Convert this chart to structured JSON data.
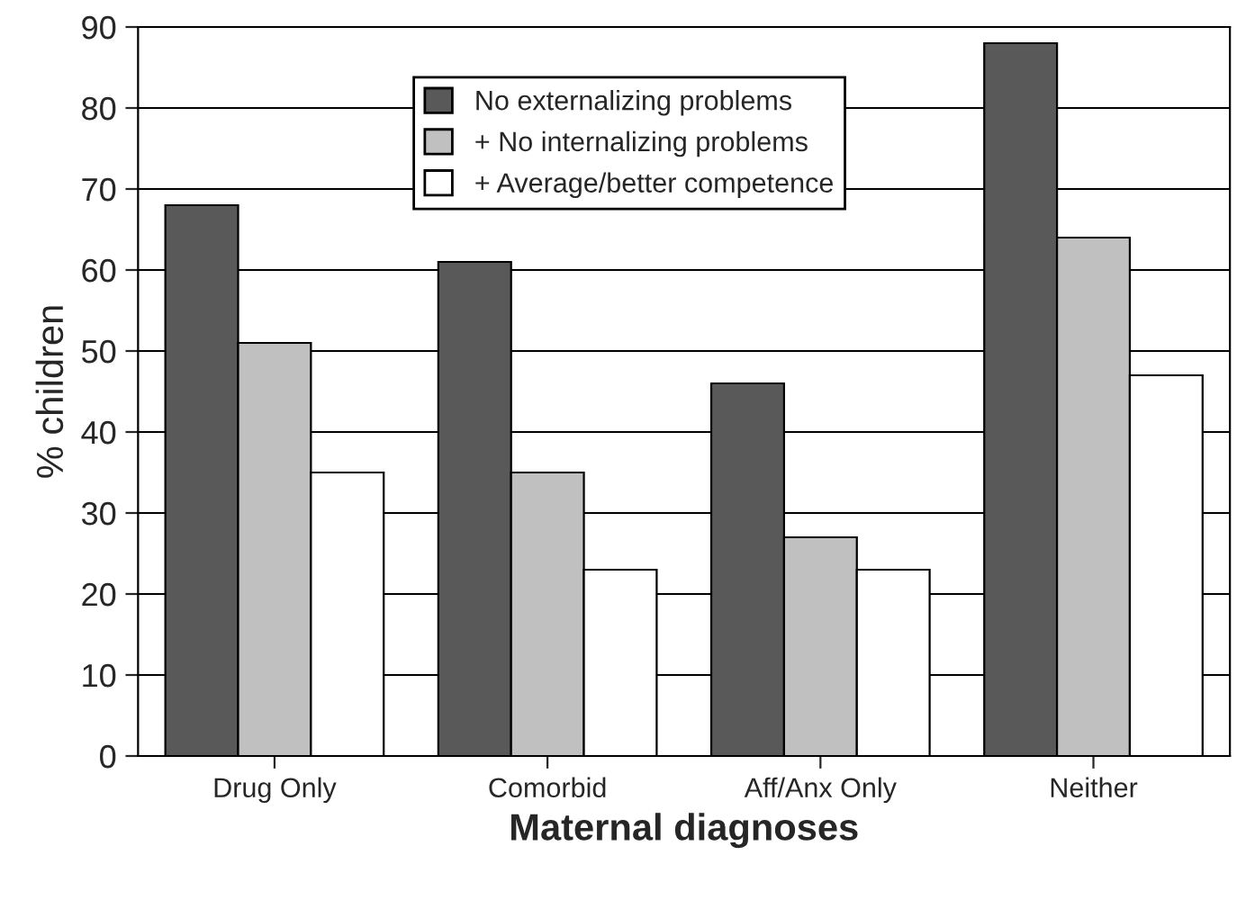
{
  "chart_data": {
    "type": "bar",
    "xlabel": "Maternal diagnoses",
    "ylabel": "% children",
    "categories": [
      "Drug Only",
      "Comorbid",
      "Aff/Anx Only",
      "Neither"
    ],
    "series": [
      {
        "name": "No externalizing problems",
        "color": "#595959",
        "values": [
          68,
          61,
          46,
          88
        ]
      },
      {
        "name": "+ No internalizing problems",
        "color": "#c0c0c0",
        "values": [
          51,
          35,
          27,
          64
        ]
      },
      {
        "name": "+ Average/better competence",
        "color": "#ffffff",
        "values": [
          35,
          23,
          23,
          47
        ]
      }
    ],
    "ylim": [
      0,
      90
    ],
    "yticks": [
      0,
      10,
      20,
      30,
      40,
      50,
      60,
      70,
      80,
      90
    ],
    "grid": "y",
    "legend": "top"
  }
}
